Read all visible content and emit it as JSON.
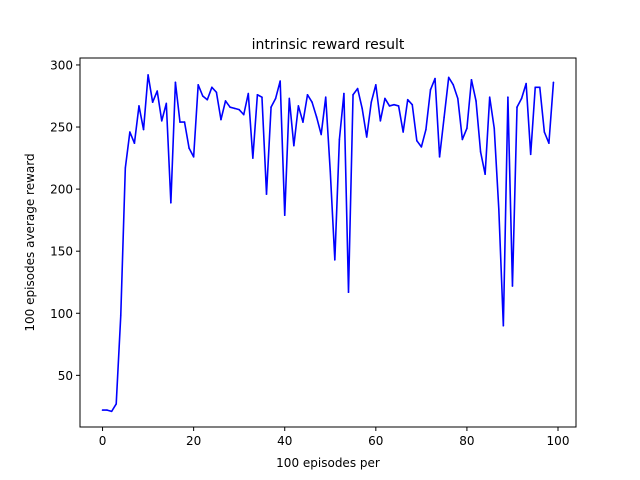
{
  "chart_data": {
    "type": "line",
    "title": "intrinsic reward result",
    "xlabel": "100 episodes per",
    "ylabel": "100 episodes average reward",
    "xlim": [
      -4.95,
      103.95
    ],
    "ylim": [
      8.4,
      305.6
    ],
    "xticks": [
      0,
      20,
      40,
      60,
      80,
      100
    ],
    "yticks": [
      50,
      100,
      150,
      200,
      250,
      300
    ],
    "grid": false,
    "legend": "none",
    "line_color": "#0000ff",
    "series": [
      {
        "x": [
          0,
          1,
          2,
          3,
          4,
          5,
          6,
          7,
          8,
          9,
          10,
          11,
          12,
          13,
          14,
          15,
          16,
          17,
          18,
          19,
          20,
          21,
          22,
          23,
          24,
          25,
          26,
          27,
          28,
          29,
          30,
          31,
          32,
          33,
          34,
          35,
          36,
          37,
          38,
          39,
          40,
          41,
          42,
          43,
          44,
          45,
          46,
          47,
          48,
          49,
          50,
          51,
          52,
          53,
          54,
          55,
          56,
          57,
          58,
          59,
          60,
          61,
          62,
          63,
          64,
          65,
          66,
          67,
          68,
          69,
          70,
          71,
          72,
          73,
          74,
          75,
          76,
          77,
          78,
          79,
          80,
          81,
          82,
          83,
          84,
          85,
          86,
          87,
          88,
          89,
          90,
          91,
          92,
          93,
          94,
          95,
          96,
          97,
          98,
          99
        ],
        "values": [
          22,
          22,
          21,
          27,
          98,
          217,
          246,
          237,
          267,
          248,
          292,
          270,
          279,
          255,
          269,
          189,
          286,
          254,
          254,
          233,
          226,
          284,
          275,
          272,
          282,
          278,
          256,
          271,
          266,
          265,
          264,
          260,
          277,
          225,
          276,
          274,
          196,
          266,
          273,
          287,
          179,
          273,
          235,
          267,
          254,
          276,
          270,
          258,
          244,
          274,
          214,
          143,
          240,
          277,
          117,
          276,
          281,
          265,
          242,
          270,
          284,
          255,
          273,
          267,
          268,
          267,
          246,
          272,
          268,
          239,
          234,
          248,
          280,
          289,
          226,
          258,
          290,
          284,
          273,
          240,
          249,
          288,
          271,
          230,
          212,
          274,
          249,
          184,
          90,
          274,
          122,
          266,
          273,
          285,
          228,
          282,
          282,
          246,
          237,
          286
        ]
      }
    ]
  }
}
